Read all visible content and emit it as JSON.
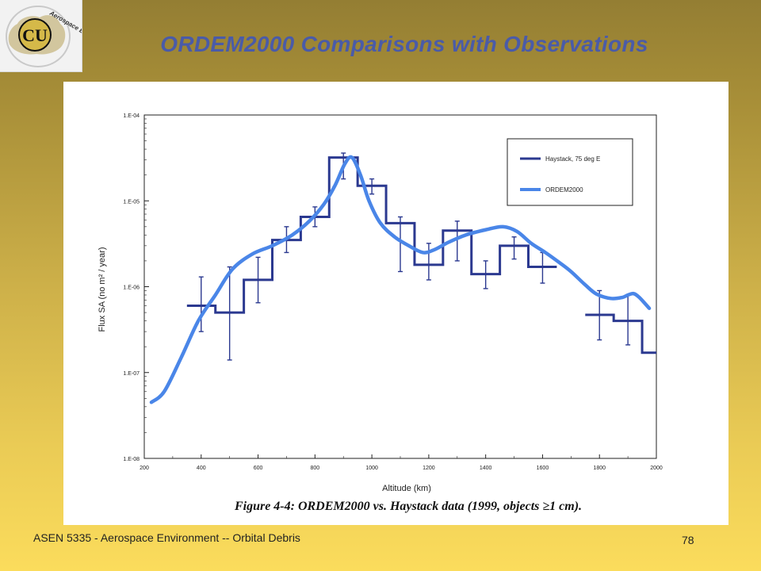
{
  "slide": {
    "title": "ORDEM2000 Comparisons with Observations",
    "footer_left": "ASEN 5335 - Aerospace Environment -- Orbital Debris",
    "page_number": "78"
  },
  "logo": {
    "letters": "CU",
    "ring_text": "Aerospace Engineering"
  },
  "caption": "Figure 4-4:  ORDEM2000 vs. Haystack data (1999, objects ≥1 cm).",
  "colors": {
    "haystack": "#2b3990",
    "ordem": "#4a86e8",
    "title": "#4a5ba8"
  },
  "chart_data": {
    "type": "line",
    "xlabel": "Altitude (km)",
    "ylabel": "Flux SA (no m² / year)",
    "xlim": [
      200,
      2000
    ],
    "ylim": [
      1e-08,
      0.0001
    ],
    "yscale": "log",
    "x_ticks": [
      "200",
      "400",
      "600",
      "800",
      "1000",
      "1200",
      "1400",
      "1600",
      "1800",
      "2000"
    ],
    "y_ticks": [
      "1.E-04",
      "1.E-05",
      "1.E-06",
      "1.E-07",
      "1.E-08"
    ],
    "legend_position": "top-right",
    "grid": false,
    "series": [
      {
        "name": "Haystack, 75 deg E",
        "style": "step-with-error-bars",
        "bins": [
          {
            "x0": 350,
            "x1": 450,
            "y": 6e-07,
            "lo": 3e-07,
            "hi": 1.3e-06
          },
          {
            "x0": 450,
            "x1": 550,
            "y": 5e-07,
            "lo": 1.4e-07,
            "hi": 1.7e-06
          },
          {
            "x0": 550,
            "x1": 650,
            "y": 1.2e-06,
            "lo": 6.5e-07,
            "hi": 2.2e-06
          },
          {
            "x0": 650,
            "x1": 750,
            "y": 3.5e-06,
            "lo": 2.5e-06,
            "hi": 5e-06
          },
          {
            "x0": 750,
            "x1": 850,
            "y": 6.5e-06,
            "lo": 5e-06,
            "hi": 8.5e-06
          },
          {
            "x0": 850,
            "x1": 950,
            "y": 3.2e-05,
            "lo": 1.8e-05,
            "hi": 3.6e-05
          },
          {
            "x0": 950,
            "x1": 1050,
            "y": 1.5e-05,
            "lo": 1.2e-05,
            "hi": 1.8e-05
          },
          {
            "x0": 1050,
            "x1": 1150,
            "y": 5.5e-06,
            "lo": 1.5e-06,
            "hi": 6.5e-06
          },
          {
            "x0": 1150,
            "x1": 1250,
            "y": 1.8e-06,
            "lo": 1.2e-06,
            "hi": 3.2e-06
          },
          {
            "x0": 1250,
            "x1": 1350,
            "y": 4.5e-06,
            "lo": 2e-06,
            "hi": 5.8e-06
          },
          {
            "x0": 1350,
            "x1": 1450,
            "y": 1.4e-06,
            "lo": 9.5e-07,
            "hi": 2e-06
          },
          {
            "x0": 1450,
            "x1": 1550,
            "y": 3e-06,
            "lo": 2.1e-06,
            "hi": 3.8e-06
          },
          {
            "x0": 1550,
            "x1": 1650,
            "y": 1.7e-06,
            "lo": 1.1e-06,
            "hi": 2.5e-06
          },
          {
            "x0": 1750,
            "x1": 1850,
            "y": 4.7e-07,
            "lo": 2.4e-07,
            "hi": 9e-07
          },
          {
            "x0": 1850,
            "x1": 1950,
            "y": 4e-07,
            "lo": 2.1e-07,
            "hi": 8e-07
          },
          {
            "x0": 1950,
            "x1": 2000,
            "y": 1.7e-07,
            "lo": null,
            "hi": null
          }
        ]
      },
      {
        "name": "ORDEM2000",
        "style": "smooth-line",
        "x": [
          225,
          270,
          330,
          390,
          450,
          510,
          580,
          650,
          720,
          780,
          830,
          870,
          905,
          930,
          960,
          990,
          1030,
          1080,
          1130,
          1180,
          1220,
          1270,
          1330,
          1400,
          1460,
          1510,
          1560,
          1610,
          1660,
          1700,
          1750,
          1790,
          1840,
          1880,
          1900,
          1920,
          1940,
          1975
        ],
        "y": [
          4.5e-08,
          6e-08,
          1.5e-07,
          4e-07,
          8e-07,
          1.6e-06,
          2.4e-06,
          3e-06,
          4e-06,
          5.8e-06,
          9e-06,
          1.5e-05,
          2.7e-05,
          3.2e-05,
          2e-05,
          1e-05,
          5.5e-06,
          3.8e-06,
          3e-06,
          2.5e-06,
          2.7e-06,
          3.3e-06,
          4e-06,
          4.6e-06,
          5e-06,
          4.4e-06,
          3.2e-06,
          2.5e-06,
          1.9e-06,
          1.5e-06,
          1.05e-06,
          8.2e-07,
          7.3e-07,
          7.5e-07,
          8e-07,
          8.3e-07,
          7.5e-07,
          5.6e-07
        ]
      }
    ]
  }
}
